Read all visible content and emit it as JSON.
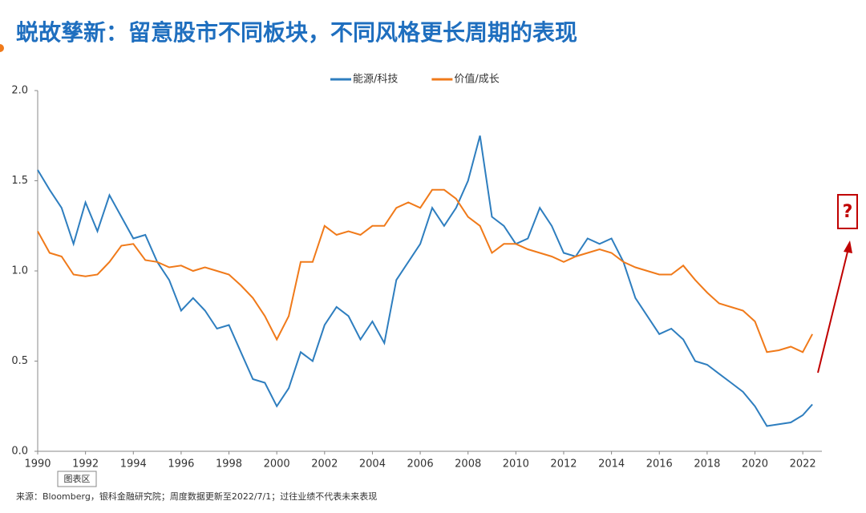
{
  "header": {
    "title": "蜕故孳新：留意股市不同板块，不同风格更长周期的表现"
  },
  "chart_data": {
    "type": "line",
    "x": [
      1990,
      1990.5,
      1991,
      1991.5,
      1992,
      1992.5,
      1993,
      1993.5,
      1994,
      1994.5,
      1995,
      1995.5,
      1996,
      1996.5,
      1997,
      1997.5,
      1998,
      1998.5,
      1999,
      1999.5,
      2000,
      2000.5,
      2001,
      2001.5,
      2002,
      2002.5,
      2003,
      2003.5,
      2004,
      2004.5,
      2005,
      2005.5,
      2006,
      2006.5,
      2007,
      2007.5,
      2008,
      2008.5,
      2009,
      2009.5,
      2010,
      2010.5,
      2011,
      2011.5,
      2012,
      2012.5,
      2013,
      2013.5,
      2014,
      2014.5,
      2015,
      2015.5,
      2016,
      2016.5,
      2017,
      2017.5,
      2018,
      2018.5,
      2019,
      2019.5,
      2020,
      2020.5,
      2021,
      2021.5,
      2022,
      2022.4
    ],
    "series": [
      {
        "name": "能源/科技",
        "color": "#2e7ebf",
        "values": [
          1.56,
          1.45,
          1.35,
          1.15,
          1.38,
          1.22,
          1.42,
          1.3,
          1.18,
          1.2,
          1.05,
          0.95,
          0.78,
          0.85,
          0.78,
          0.68,
          0.7,
          0.55,
          0.4,
          0.38,
          0.25,
          0.35,
          0.55,
          0.5,
          0.7,
          0.8,
          0.75,
          0.62,
          0.72,
          0.6,
          0.95,
          1.05,
          1.15,
          1.35,
          1.25,
          1.35,
          1.5,
          1.75,
          1.3,
          1.25,
          1.15,
          1.18,
          1.35,
          1.25,
          1.1,
          1.08,
          1.18,
          1.15,
          1.18,
          1.05,
          0.85,
          0.75,
          0.65,
          0.68,
          0.62,
          0.5,
          0.48,
          0.43,
          0.38,
          0.33,
          0.25,
          0.14,
          0.15,
          0.16,
          0.2,
          0.26
        ]
      },
      {
        "name": "价值/成长",
        "color": "#f07a1a",
        "values": [
          1.22,
          1.1,
          1.08,
          0.98,
          0.97,
          0.98,
          1.05,
          1.14,
          1.15,
          1.06,
          1.05,
          1.02,
          1.03,
          1.0,
          1.02,
          1.0,
          0.98,
          0.92,
          0.85,
          0.75,
          0.62,
          0.75,
          1.05,
          1.05,
          1.25,
          1.2,
          1.22,
          1.2,
          1.25,
          1.25,
          1.35,
          1.38,
          1.35,
          1.45,
          1.45,
          1.4,
          1.3,
          1.25,
          1.1,
          1.15,
          1.15,
          1.12,
          1.1,
          1.08,
          1.05,
          1.08,
          1.1,
          1.12,
          1.1,
          1.05,
          1.02,
          1.0,
          0.98,
          0.98,
          1.03,
          0.95,
          0.88,
          0.82,
          0.8,
          0.78,
          0.72,
          0.55,
          0.56,
          0.58,
          0.55,
          0.65
        ]
      }
    ],
    "xlim": [
      1990,
      2022.8
    ],
    "xticks": [
      1990,
      1992,
      1994,
      1996,
      1998,
      2000,
      2002,
      2004,
      2006,
      2008,
      2010,
      2012,
      2014,
      2016,
      2018,
      2020,
      2022
    ],
    "ylim": [
      0,
      2
    ],
    "yticks": [
      {
        "value": 0,
        "label": "0.0"
      },
      0.5,
      {
        "value": 1,
        "label": "1.0"
      },
      1.5,
      {
        "value": 2,
        "label": "2.0"
      }
    ],
    "legend": "top",
    "annotation": "?",
    "chart_area_label": "图表区"
  },
  "footer": {
    "source": "来源：Bloomberg，银科金融研究院；周度数据更新至2022/7/1；过往业绩不代表未来表现"
  }
}
